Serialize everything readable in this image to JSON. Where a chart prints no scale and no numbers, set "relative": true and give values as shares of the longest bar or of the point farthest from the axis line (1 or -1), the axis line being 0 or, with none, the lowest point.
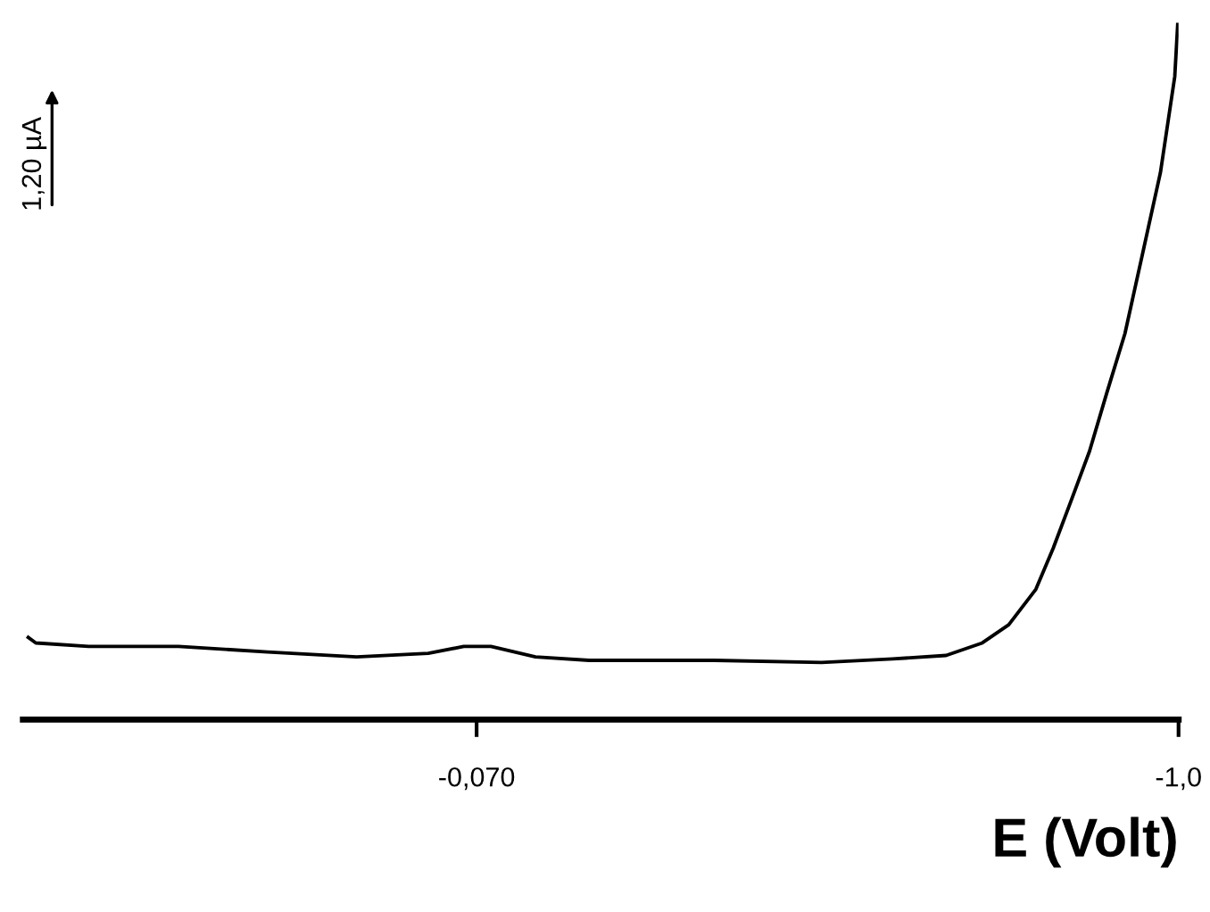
{
  "chart_data": {
    "type": "line",
    "relative": true,
    "xlabel": "E (Volt)",
    "xlim": [
      0.531,
      -1.0
    ],
    "xticks": [
      {
        "value": -0.07,
        "label": "-0,070"
      },
      {
        "value": -1.0,
        "label": "-1,0"
      }
    ],
    "x": [
      0.524,
      0.514,
      0.444,
      0.325,
      0.207,
      0.089,
      -0.006,
      -0.053,
      -0.089,
      -0.148,
      -0.219,
      -0.385,
      -0.527,
      -0.621,
      -0.692,
      -0.74,
      -0.775,
      -0.811,
      -0.834,
      -0.858,
      -0.882,
      -0.905,
      -0.929,
      -0.952,
      -0.976,
      -0.995,
      -0.999
    ],
    "series": [
      {
        "color": "#000000",
        "values": [
          0.118,
          0.11,
          0.105,
          0.105,
          0.097,
          0.09,
          0.095,
          0.105,
          0.105,
          0.09,
          0.085,
          0.085,
          0.082,
          0.087,
          0.092,
          0.11,
          0.136,
          0.187,
          0.246,
          0.315,
          0.385,
          0.469,
          0.554,
          0.667,
          0.785,
          0.923,
          1.0
        ]
      }
    ],
    "annotations": [
      "1,20 µA"
    ],
    "grid": false,
    "legend": false,
    "marker": "none",
    "line_style": "solid"
  }
}
